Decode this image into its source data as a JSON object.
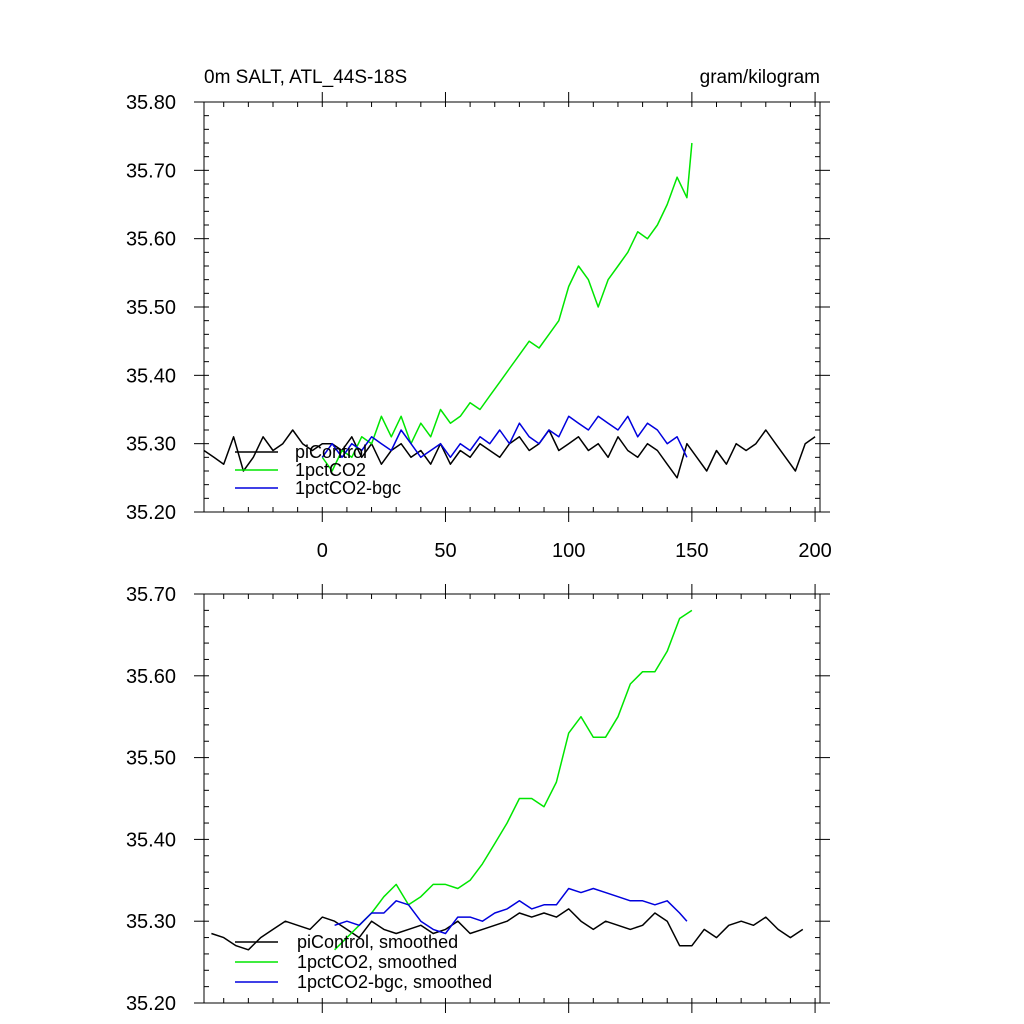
{
  "header": {
    "title": "0m SALT, ATL_44S-18S",
    "units": "gram/kilogram"
  },
  "colors": {
    "piControl": "#000000",
    "1pctCO2": "#00e600",
    "1pctCO2-bgc": "#0000dd"
  },
  "chart_data": [
    {
      "type": "line",
      "panel": "raw",
      "xlim": [
        -48,
        202
      ],
      "ylim": [
        35.2,
        35.8
      ],
      "xticks": [
        0,
        50,
        100,
        150,
        200
      ],
      "xtick_labels": [
        "0",
        "50",
        "100",
        "150",
        "200"
      ],
      "yticks": [
        35.2,
        35.3,
        35.4,
        35.5,
        35.6,
        35.7,
        35.8
      ],
      "ytick_labels": [
        "35.20",
        "35.30",
        "35.40",
        "35.50",
        "35.60",
        "35.70",
        "35.80"
      ],
      "legend_position": "bottom-left",
      "series": [
        {
          "name": "piControl",
          "color_key": "piControl",
          "x": [
            -48,
            -44,
            -40,
            -36,
            -32,
            -28,
            -24,
            -20,
            -16,
            -12,
            -8,
            -4,
            0,
            4,
            8,
            12,
            16,
            20,
            24,
            28,
            32,
            36,
            40,
            44,
            48,
            52,
            56,
            60,
            64,
            68,
            72,
            76,
            80,
            84,
            88,
            92,
            96,
            100,
            104,
            108,
            112,
            116,
            120,
            124,
            128,
            132,
            136,
            140,
            144,
            148,
            152,
            156,
            160,
            164,
            168,
            172,
            176,
            180,
            184,
            188,
            192,
            196,
            200
          ],
          "y": [
            35.29,
            35.28,
            35.27,
            35.31,
            35.26,
            35.28,
            35.31,
            35.29,
            35.3,
            35.32,
            35.3,
            35.29,
            35.3,
            35.3,
            35.29,
            35.31,
            35.28,
            35.3,
            35.27,
            35.29,
            35.3,
            35.28,
            35.29,
            35.27,
            35.3,
            35.27,
            35.29,
            35.28,
            35.3,
            35.29,
            35.28,
            35.3,
            35.31,
            35.29,
            35.3,
            35.32,
            35.29,
            35.3,
            35.31,
            35.29,
            35.3,
            35.28,
            35.31,
            35.29,
            35.28,
            35.3,
            35.29,
            35.27,
            35.25,
            35.3,
            35.28,
            35.26,
            35.29,
            35.27,
            35.3,
            35.29,
            35.3,
            35.32,
            35.3,
            35.28,
            35.26,
            35.3,
            35.31
          ]
        },
        {
          "name": "1pctCO2",
          "color_key": "1pctCO2",
          "x": [
            0,
            4,
            8,
            12,
            16,
            20,
            24,
            28,
            32,
            36,
            40,
            44,
            48,
            52,
            56,
            60,
            64,
            68,
            72,
            76,
            80,
            84,
            88,
            92,
            96,
            100,
            104,
            108,
            112,
            116,
            120,
            124,
            128,
            132,
            136,
            140,
            144,
            148,
            150
          ],
          "y": [
            35.28,
            35.26,
            35.29,
            35.28,
            35.31,
            35.3,
            35.34,
            35.31,
            35.34,
            35.3,
            35.33,
            35.31,
            35.35,
            35.33,
            35.34,
            35.36,
            35.35,
            35.37,
            35.39,
            35.41,
            35.43,
            35.45,
            35.44,
            35.46,
            35.48,
            35.53,
            35.56,
            35.54,
            35.5,
            35.54,
            35.56,
            35.58,
            35.61,
            35.6,
            35.62,
            35.65,
            35.69,
            35.66,
            35.74
          ]
        },
        {
          "name": "1pctCO2-bgc",
          "color_key": "1pctCO2-bgc",
          "x": [
            0,
            4,
            8,
            12,
            16,
            20,
            24,
            28,
            32,
            36,
            40,
            44,
            48,
            52,
            56,
            60,
            64,
            68,
            72,
            76,
            80,
            84,
            88,
            92,
            96,
            100,
            104,
            108,
            112,
            116,
            120,
            124,
            128,
            132,
            136,
            140,
            144,
            148
          ],
          "y": [
            35.28,
            35.3,
            35.28,
            35.3,
            35.29,
            35.31,
            35.3,
            35.29,
            35.32,
            35.3,
            35.28,
            35.29,
            35.3,
            35.28,
            35.3,
            35.29,
            35.31,
            35.3,
            35.32,
            35.3,
            35.33,
            35.31,
            35.3,
            35.32,
            35.31,
            35.34,
            35.33,
            35.32,
            35.34,
            35.33,
            35.32,
            35.34,
            35.31,
            35.33,
            35.32,
            35.3,
            35.31,
            35.28
          ]
        }
      ]
    },
    {
      "type": "line",
      "panel": "smoothed",
      "xlim": [
        -48,
        202
      ],
      "ylim": [
        35.2,
        35.7
      ],
      "xticks": [
        0,
        50,
        100,
        150,
        200
      ],
      "yticks": [
        35.2,
        35.3,
        35.4,
        35.5,
        35.6,
        35.7
      ],
      "ytick_labels": [
        "35.20",
        "35.30",
        "35.40",
        "35.50",
        "35.60",
        "35.70"
      ],
      "legend_position": "bottom-left",
      "series": [
        {
          "name": "piControl, smoothed",
          "color_key": "piControl",
          "x": [
            -45,
            -40,
            -35,
            -30,
            -25,
            -20,
            -15,
            -10,
            -5,
            0,
            5,
            10,
            15,
            20,
            25,
            30,
            35,
            40,
            45,
            50,
            55,
            60,
            65,
            70,
            75,
            80,
            85,
            90,
            95,
            100,
            105,
            110,
            115,
            120,
            125,
            130,
            135,
            140,
            145,
            150,
            155,
            160,
            165,
            170,
            175,
            180,
            185,
            190,
            195
          ],
          "y": [
            35.285,
            35.28,
            35.27,
            35.265,
            35.28,
            35.29,
            35.3,
            35.295,
            35.29,
            35.305,
            35.3,
            35.29,
            35.28,
            35.3,
            35.29,
            35.285,
            35.29,
            35.295,
            35.285,
            35.29,
            35.3,
            35.285,
            35.29,
            35.295,
            35.3,
            35.31,
            35.305,
            35.31,
            35.305,
            35.315,
            35.3,
            35.29,
            35.3,
            35.295,
            35.29,
            35.295,
            35.31,
            35.3,
            35.27,
            35.27,
            35.29,
            35.28,
            35.295,
            35.3,
            35.295,
            35.305,
            35.29,
            35.28,
            35.29
          ]
        },
        {
          "name": "1pctCO2, smoothed",
          "color_key": "1pctCO2",
          "x": [
            5,
            10,
            15,
            20,
            25,
            30,
            35,
            40,
            45,
            50,
            55,
            60,
            65,
            70,
            75,
            80,
            85,
            90,
            95,
            100,
            105,
            110,
            115,
            120,
            125,
            130,
            135,
            140,
            145,
            150
          ],
          "y": [
            35.265,
            35.28,
            35.295,
            35.31,
            35.33,
            35.345,
            35.32,
            35.33,
            35.345,
            35.345,
            35.34,
            35.35,
            35.37,
            35.395,
            35.42,
            35.45,
            35.45,
            35.44,
            35.47,
            35.53,
            35.55,
            35.525,
            35.525,
            35.55,
            35.59,
            35.605,
            35.605,
            35.63,
            35.67,
            35.68
          ]
        },
        {
          "name": "1pctCO2-bgc, smoothed",
          "color_key": "1pctCO2-bgc",
          "x": [
            5,
            10,
            15,
            20,
            25,
            30,
            35,
            40,
            45,
            50,
            55,
            60,
            65,
            70,
            75,
            80,
            85,
            90,
            95,
            100,
            105,
            110,
            115,
            120,
            125,
            130,
            135,
            140,
            145,
            148
          ],
          "y": [
            35.295,
            35.3,
            35.295,
            35.31,
            35.31,
            35.325,
            35.32,
            35.3,
            35.29,
            35.285,
            35.305,
            35.305,
            35.3,
            35.31,
            35.315,
            35.325,
            35.315,
            35.32,
            35.32,
            35.34,
            35.335,
            35.34,
            35.335,
            35.33,
            35.325,
            35.325,
            35.32,
            35.325,
            35.31,
            35.3
          ]
        }
      ]
    }
  ]
}
